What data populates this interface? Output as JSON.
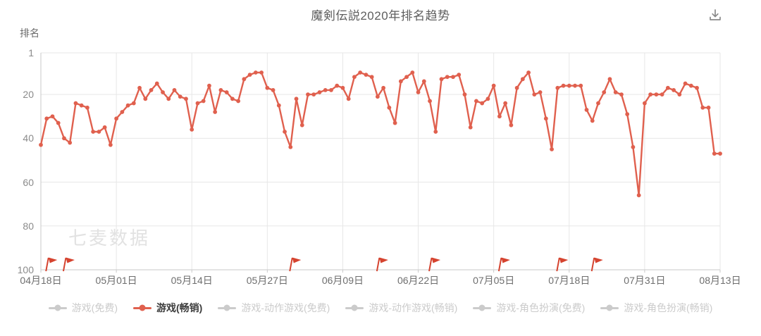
{
  "header": {
    "title": "魔剣伝説2020年排名趋势"
  },
  "chart_data": {
    "type": "line",
    "title": "魔剣伝説2020年排名趋势",
    "ylabel": "排名",
    "y_inverted": true,
    "y_ticks": [
      1,
      20,
      40,
      60,
      80,
      100
    ],
    "ylim": [
      1,
      100
    ],
    "grid": true,
    "legend_position": "bottom",
    "watermark": "七麦数据",
    "x_tick_labels": [
      "04月18日",
      "05月01日",
      "05月14日",
      "05月27日",
      "06月09日",
      "06月22日",
      "07月05日",
      "07月18日",
      "07月31日",
      "08月13日"
    ],
    "x_tick_days": [
      0,
      13,
      26,
      39,
      52,
      65,
      78,
      91,
      104,
      117
    ],
    "total_days": 117,
    "flag_days": [
      1,
      4,
      43,
      58,
      67,
      79,
      89,
      95
    ],
    "series": [
      {
        "name": "游戏(畅销)",
        "color": "#e0604e",
        "values": [
          43,
          31,
          30,
          33,
          40,
          42,
          24,
          25,
          26,
          37,
          37,
          35,
          43,
          31,
          28,
          25,
          24,
          17,
          22,
          18,
          15,
          19,
          22,
          18,
          21,
          22,
          36,
          24,
          23,
          16,
          28,
          18,
          19,
          22,
          23,
          13,
          11,
          10,
          10,
          17,
          18,
          25,
          37,
          44,
          22,
          34,
          20,
          20,
          19,
          18,
          18,
          16,
          17,
          22,
          12,
          10,
          11,
          12,
          21,
          17,
          26,
          33,
          14,
          12,
          10,
          19,
          14,
          23,
          37,
          13,
          12,
          12,
          11,
          20,
          35,
          23,
          24,
          22,
          16,
          30,
          24,
          34,
          17,
          13,
          10,
          20,
          19,
          31,
          45,
          17,
          16,
          16,
          16,
          16,
          27,
          32,
          24,
          19,
          13,
          19,
          20,
          29,
          44,
          66,
          24,
          20,
          20,
          20,
          17,
          18,
          20,
          15,
          16,
          17,
          26,
          26,
          47,
          47
        ]
      }
    ]
  },
  "legend": {
    "items": [
      {
        "label": "游戏(免费)",
        "active": false
      },
      {
        "label": "游戏(畅销)",
        "active": true
      },
      {
        "label": "游戏-动作游戏(免费)",
        "active": false
      },
      {
        "label": "游戏-动作游戏(畅销)",
        "active": false
      },
      {
        "label": "游戏-角色扮演(免费)",
        "active": false
      },
      {
        "label": "游戏-角色扮演(畅销)",
        "active": false
      }
    ]
  },
  "colors": {
    "accent": "#e0604e",
    "inactive": "#cbcbcb",
    "grid": "#e7e7e7",
    "axis": "#c9c9c9",
    "tick_text": "#8b8b8b",
    "flag": "#d5432f",
    "watermark": "#e2e2e2"
  }
}
